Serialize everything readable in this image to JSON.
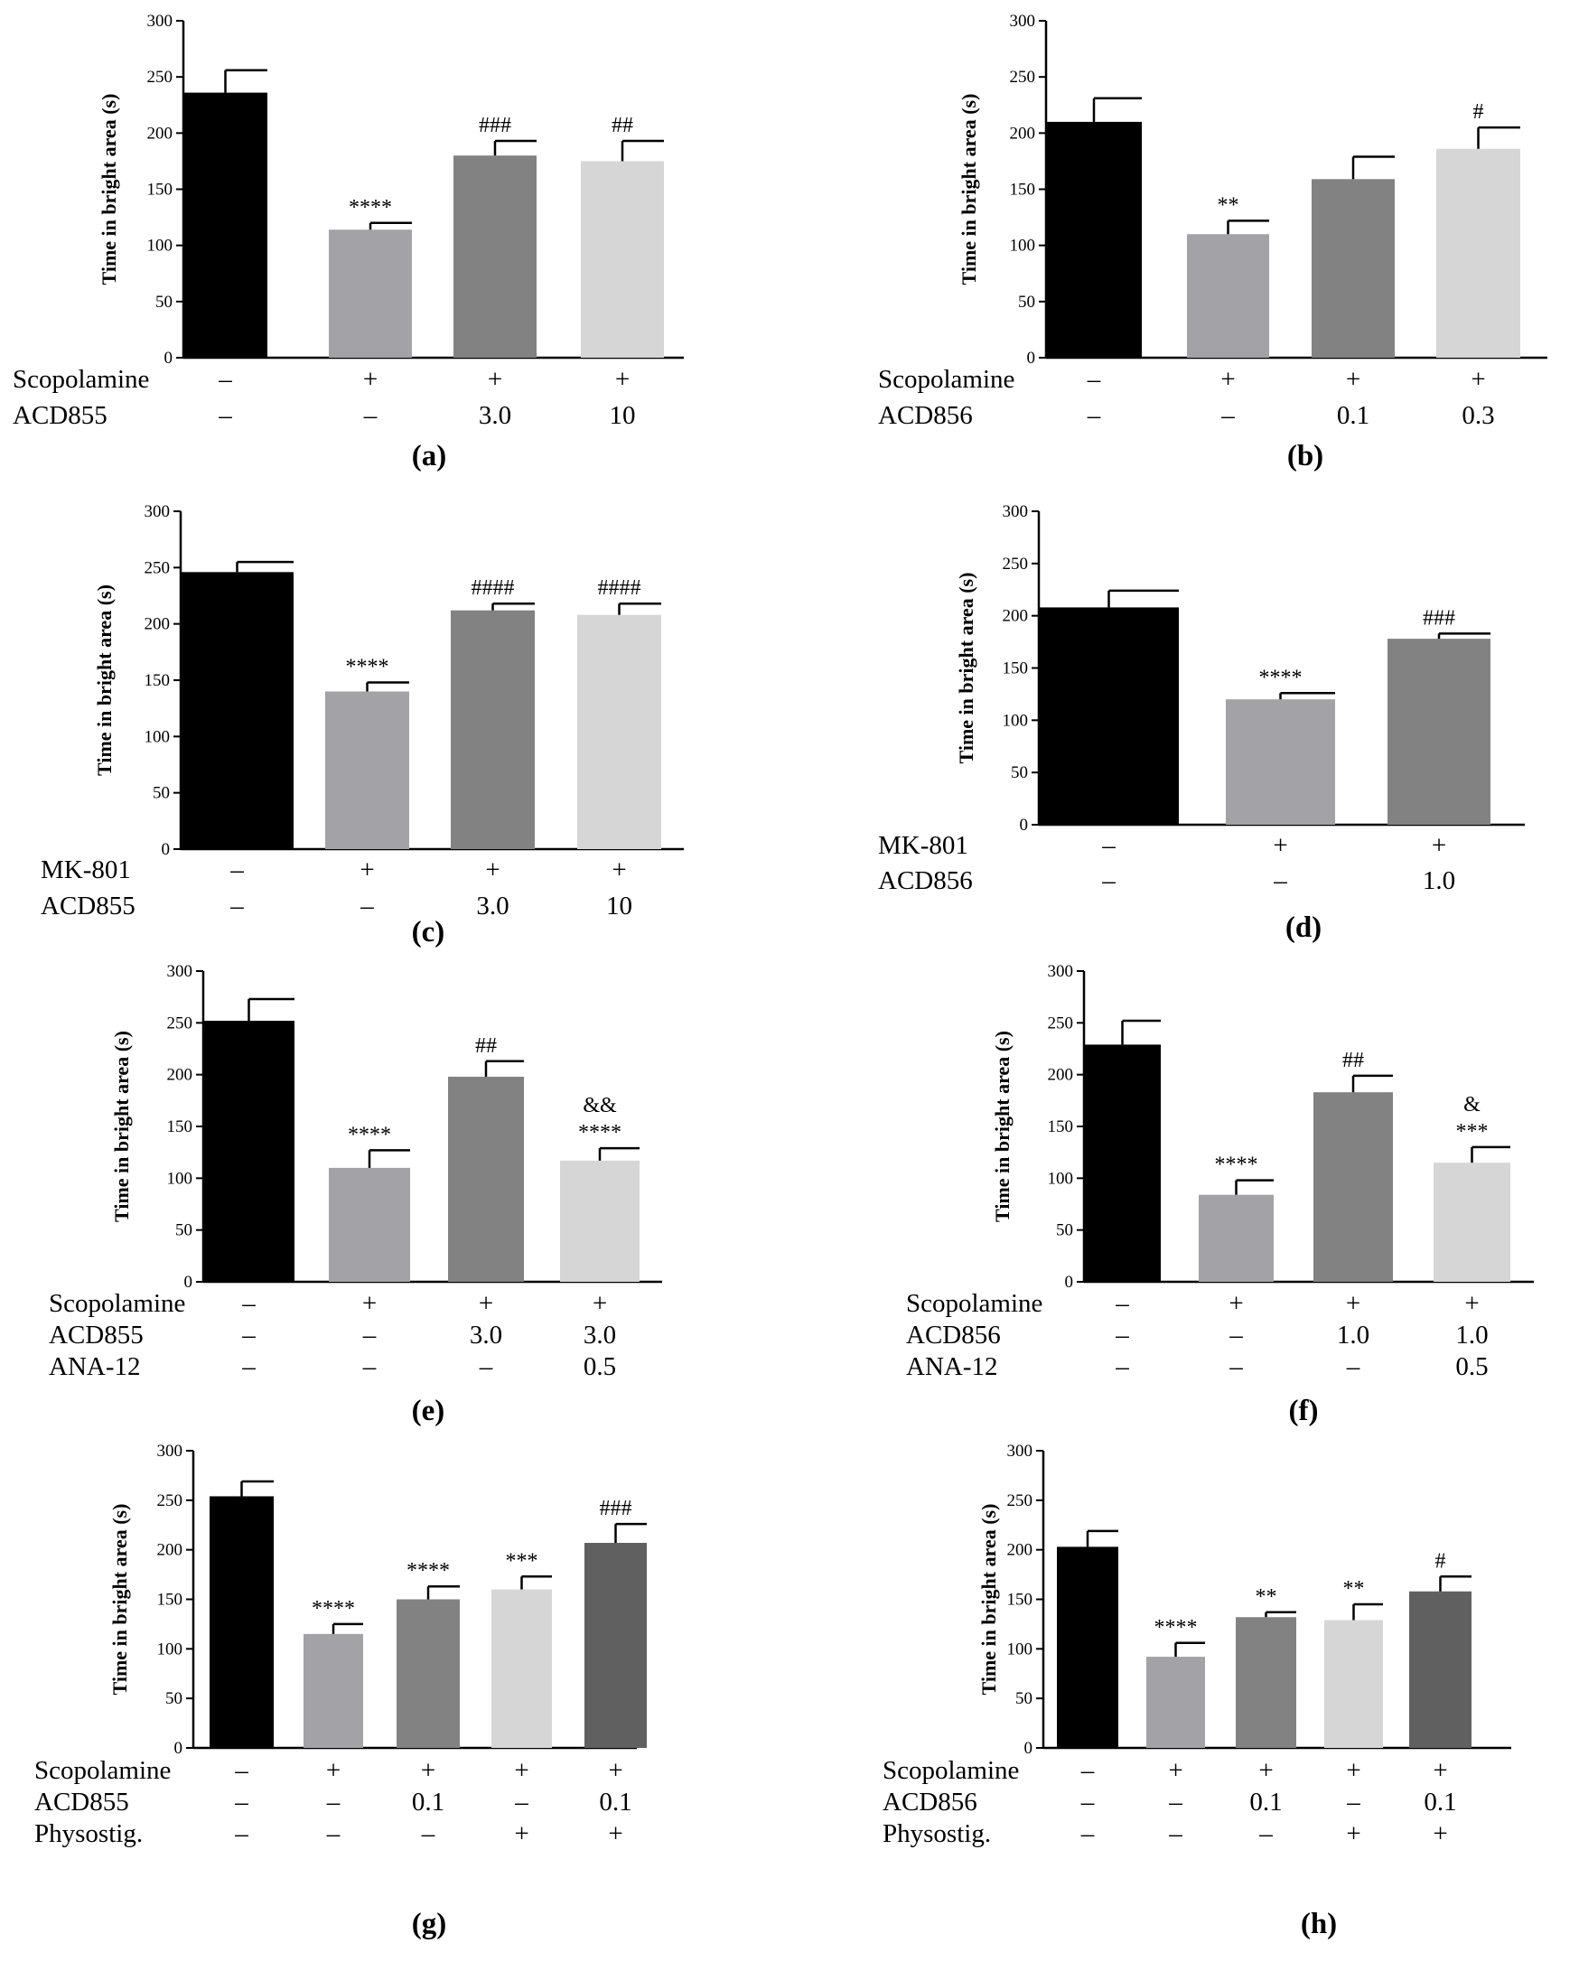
{
  "figure": {
    "description_free": true,
    "colors": {
      "black": "#000000",
      "mid_gray": "#a3a2a7",
      "dark_gray": "#828282",
      "light_gray": "#d6d6d6",
      "darker_gray": "#606060"
    }
  },
  "chart_data": [
    {
      "id": "a",
      "type": "bar",
      "panel_label": "(a)",
      "ylabel": "Time in  bright area (s)",
      "ylim": [
        0,
        300
      ],
      "yticks": [
        0,
        50,
        100,
        150,
        200,
        250,
        300
      ],
      "categories": [
        "1",
        "2",
        "3",
        "4"
      ],
      "values": [
        236,
        114,
        180,
        175
      ],
      "errors": [
        20,
        6,
        13,
        18
      ],
      "colors": [
        "#000000",
        "#a3a2a7",
        "#828282",
        "#d6d6d6"
      ],
      "annotations": [
        [],
        [
          "****"
        ],
        [
          "###"
        ],
        [
          "##"
        ]
      ],
      "factors": [
        {
          "name": "Scopolamine",
          "levels": [
            "–",
            "+",
            "+",
            "+"
          ]
        },
        {
          "name": "ACD855",
          "levels": [
            "–",
            "–",
            "3.0",
            "10"
          ]
        }
      ]
    },
    {
      "id": "b",
      "type": "bar",
      "panel_label": "(b)",
      "ylabel": "Time in  bright area (s)",
      "ylim": [
        0,
        300
      ],
      "yticks": [
        0,
        50,
        100,
        150,
        200,
        250,
        300
      ],
      "categories": [
        "1",
        "2",
        "3",
        "4"
      ],
      "values": [
        210,
        110,
        159,
        186
      ],
      "errors": [
        21,
        12,
        20,
        19
      ],
      "colors": [
        "#000000",
        "#a3a2a7",
        "#828282",
        "#d6d6d6"
      ],
      "annotations": [
        [],
        [
          "**"
        ],
        [],
        [
          "#"
        ]
      ],
      "factors": [
        {
          "name": "Scopolamine",
          "levels": [
            "–",
            "+",
            "+",
            "+"
          ]
        },
        {
          "name": "ACD856",
          "levels": [
            "–",
            "–",
            "0.1",
            "0.3"
          ]
        }
      ]
    },
    {
      "id": "c",
      "type": "bar",
      "panel_label": "(c)",
      "ylabel": "Time in  bright area (s)",
      "ylim": [
        0,
        300
      ],
      "yticks": [
        0,
        50,
        100,
        150,
        200,
        250,
        300
      ],
      "categories": [
        "1",
        "2",
        "3",
        "4"
      ],
      "values": [
        246,
        140,
        212,
        208
      ],
      "errors": [
        9,
        8,
        6,
        10
      ],
      "colors": [
        "#000000",
        "#a3a2a7",
        "#828282",
        "#d6d6d6"
      ],
      "annotations": [
        [],
        [
          "****"
        ],
        [
          "####"
        ],
        [
          "####"
        ]
      ],
      "factors": [
        {
          "name": "MK-801",
          "levels": [
            "–",
            "+",
            "+",
            "+"
          ]
        },
        {
          "name": "ACD855",
          "levels": [
            "–",
            "–",
            "3.0",
            "10"
          ]
        }
      ]
    },
    {
      "id": "d",
      "type": "bar",
      "panel_label": "(d)",
      "ylabel": "Time in  bright area (s)",
      "ylim": [
        0,
        300
      ],
      "yticks": [
        0,
        50,
        100,
        150,
        200,
        250,
        300
      ],
      "categories": [
        "1",
        "2",
        "3"
      ],
      "values": [
        208,
        120,
        178
      ],
      "errors": [
        16,
        6,
        5
      ],
      "colors": [
        "#000000",
        "#a3a2a7",
        "#828282"
      ],
      "annotations": [
        [],
        [
          "****"
        ],
        [
          "###"
        ]
      ],
      "factors": [
        {
          "name": "MK-801",
          "levels": [
            "–",
            "+",
            "+"
          ]
        },
        {
          "name": "ACD856",
          "levels": [
            "–",
            "–",
            "1.0"
          ]
        }
      ]
    },
    {
      "id": "e",
      "type": "bar",
      "panel_label": "(e)",
      "ylabel": "Time in  bright area (s)",
      "ylim": [
        0,
        300
      ],
      "yticks": [
        0,
        50,
        100,
        150,
        200,
        250,
        300
      ],
      "categories": [
        "1",
        "2",
        "3",
        "4"
      ],
      "values": [
        252,
        110,
        198,
        117
      ],
      "errors": [
        21,
        17,
        15,
        12
      ],
      "colors": [
        "#000000",
        "#a3a2a7",
        "#828282",
        "#d6d6d6"
      ],
      "annotations": [
        [],
        [
          "****"
        ],
        [
          "##"
        ],
        [
          "****",
          "&&"
        ]
      ],
      "factors": [
        {
          "name": "Scopolamine",
          "levels": [
            "–",
            "+",
            "+",
            "+"
          ]
        },
        {
          "name": "ACD855",
          "levels": [
            "–",
            "–",
            "3.0",
            "3.0"
          ]
        },
        {
          "name": "ANA-12",
          "levels": [
            "–",
            "–",
            "–",
            "0.5"
          ]
        }
      ]
    },
    {
      "id": "f",
      "type": "bar",
      "panel_label": "(f)",
      "ylabel": "Time in  bright area (s)",
      "ylim": [
        0,
        300
      ],
      "yticks": [
        0,
        50,
        100,
        150,
        200,
        250,
        300
      ],
      "categories": [
        "1",
        "2",
        "3",
        "4"
      ],
      "values": [
        229,
        84,
        183,
        115
      ],
      "errors": [
        23,
        14,
        16,
        15
      ],
      "colors": [
        "#000000",
        "#a3a2a7",
        "#828282",
        "#d6d6d6"
      ],
      "annotations": [
        [],
        [
          "****"
        ],
        [
          "##"
        ],
        [
          "***",
          "&"
        ]
      ],
      "factors": [
        {
          "name": "Scopolamine",
          "levels": [
            "–",
            "+",
            "+",
            "+"
          ]
        },
        {
          "name": "ACD856",
          "levels": [
            "–",
            "–",
            "1.0",
            "1.0"
          ]
        },
        {
          "name": "ANA-12",
          "levels": [
            "–",
            "–",
            "–",
            "0.5"
          ]
        }
      ]
    },
    {
      "id": "g",
      "type": "bar",
      "panel_label": "(g)",
      "ylabel": "Time in  bright area (s)",
      "ylim": [
        0,
        300
      ],
      "yticks": [
        0,
        50,
        100,
        150,
        200,
        250,
        300
      ],
      "categories": [
        "1",
        "2",
        "3",
        "4",
        "5"
      ],
      "values": [
        254,
        115,
        150,
        160,
        207
      ],
      "errors": [
        15,
        10,
        13,
        13,
        19
      ],
      "colors": [
        "#000000",
        "#a3a2a7",
        "#828282",
        "#d6d6d6",
        "#606060"
      ],
      "annotations": [
        [],
        [
          "****"
        ],
        [
          "****"
        ],
        [
          "***"
        ],
        [
          "###"
        ]
      ],
      "factors": [
        {
          "name": "Scopolamine",
          "levels": [
            "–",
            "+",
            "+",
            "+",
            "+"
          ]
        },
        {
          "name": "ACD855",
          "levels": [
            "–",
            "–",
            "0.1",
            "–",
            "0.1"
          ]
        },
        {
          "name": "Physostig.",
          "levels": [
            "–",
            "–",
            "–",
            "+",
            "+"
          ]
        }
      ]
    },
    {
      "id": "h",
      "type": "bar",
      "panel_label": "(h)",
      "ylabel": "Time in  bright area (s)",
      "ylim": [
        0,
        300
      ],
      "yticks": [
        0,
        50,
        100,
        150,
        200,
        250,
        300
      ],
      "categories": [
        "1",
        "2",
        "3",
        "4",
        "5"
      ],
      "values": [
        203,
        92,
        132,
        129,
        158
      ],
      "errors": [
        16,
        14,
        5,
        16,
        15
      ],
      "colors": [
        "#000000",
        "#a3a2a7",
        "#828282",
        "#d6d6d6",
        "#606060"
      ],
      "annotations": [
        [],
        [
          "****"
        ],
        [
          "**"
        ],
        [
          "**"
        ],
        [
          "#"
        ]
      ],
      "factors": [
        {
          "name": "Scopolamine",
          "levels": [
            "–",
            "+",
            "+",
            "+",
            "+"
          ]
        },
        {
          "name": "ACD856",
          "levels": [
            "–",
            "–",
            "0.1",
            "–",
            "0.1"
          ]
        },
        {
          "name": "Physostig.",
          "levels": [
            "–",
            "–",
            "–",
            "+",
            "+"
          ]
        }
      ]
    }
  ]
}
